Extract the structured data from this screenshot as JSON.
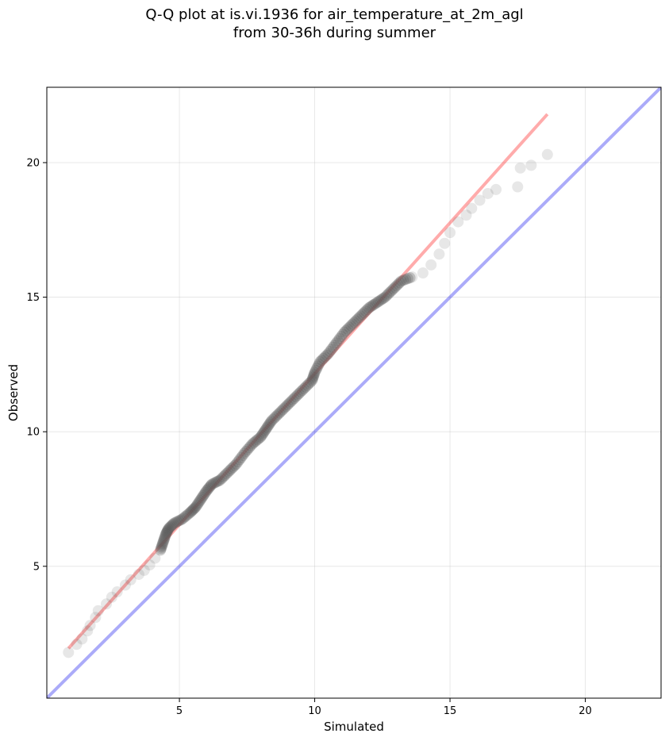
{
  "chart_data": {
    "type": "scatter",
    "title": "Q-Q plot at is.vi.1936 for air_temperature_at_2m_agl",
    "subtitle": "from 30-36h during summer",
    "xlabel": "Simulated",
    "ylabel": "Observed",
    "xlim": [
      0.1,
      22.8
    ],
    "ylim": [
      0.1,
      22.8
    ],
    "xticks": [
      5,
      10,
      15,
      20
    ],
    "yticks": [
      5,
      10,
      15,
      20
    ],
    "grid": true,
    "reference_line": {
      "color": "#0000ee",
      "alpha": 0.33,
      "points": [
        [
          0.1,
          0.1
        ],
        [
          22.8,
          22.8
        ]
      ]
    },
    "fit_line": {
      "color": "#ff0000",
      "alpha": 0.33,
      "points": [
        [
          0.9,
          1.95
        ],
        [
          18.6,
          21.8
        ]
      ]
    },
    "marker_color": "#555555",
    "points": [
      [
        0.9,
        1.8
      ],
      [
        1.2,
        2.1
      ],
      [
        1.4,
        2.3
      ],
      [
        1.6,
        2.6
      ],
      [
        1.7,
        2.8
      ],
      [
        1.9,
        3.1
      ],
      [
        2.0,
        3.35
      ],
      [
        2.3,
        3.6
      ],
      [
        2.5,
        3.85
      ],
      [
        2.7,
        4.05
      ],
      [
        3.0,
        4.3
      ],
      [
        3.2,
        4.5
      ],
      [
        3.5,
        4.7
      ],
      [
        3.7,
        4.85
      ],
      [
        3.9,
        5.05
      ],
      [
        4.1,
        5.3
      ],
      [
        4.3,
        5.6
      ],
      [
        4.4,
        5.9
      ],
      [
        4.5,
        6.2
      ],
      [
        4.6,
        6.4
      ],
      [
        4.8,
        6.6
      ],
      [
        5.1,
        6.75
      ],
      [
        5.4,
        7.0
      ],
      [
        5.6,
        7.2
      ],
      [
        5.8,
        7.5
      ],
      [
        6.0,
        7.8
      ],
      [
        6.2,
        8.05
      ],
      [
        6.5,
        8.2
      ],
      [
        6.8,
        8.5
      ],
      [
        7.1,
        8.8
      ],
      [
        7.4,
        9.2
      ],
      [
        7.7,
        9.55
      ],
      [
        8.0,
        9.8
      ],
      [
        8.2,
        10.1
      ],
      [
        8.4,
        10.4
      ],
      [
        8.7,
        10.7
      ],
      [
        9.0,
        11.0
      ],
      [
        9.3,
        11.3
      ],
      [
        9.6,
        11.6
      ],
      [
        9.9,
        11.9
      ],
      [
        10.0,
        12.2
      ],
      [
        10.2,
        12.6
      ],
      [
        10.5,
        12.9
      ],
      [
        10.8,
        13.3
      ],
      [
        11.1,
        13.7
      ],
      [
        11.4,
        14.0
      ],
      [
        11.7,
        14.3
      ],
      [
        12.0,
        14.6
      ],
      [
        12.3,
        14.8
      ],
      [
        12.6,
        15.0
      ],
      [
        12.9,
        15.3
      ],
      [
        13.2,
        15.6
      ],
      [
        13.6,
        15.75
      ],
      [
        14.0,
        15.9
      ],
      [
        14.3,
        16.2
      ],
      [
        14.6,
        16.6
      ],
      [
        14.8,
        17.0
      ],
      [
        15.0,
        17.4
      ],
      [
        15.3,
        17.8
      ],
      [
        15.6,
        18.05
      ],
      [
        15.8,
        18.3
      ],
      [
        16.1,
        18.6
      ],
      [
        16.4,
        18.85
      ],
      [
        16.7,
        19.0
      ],
      [
        17.5,
        19.1
      ],
      [
        17.6,
        19.8
      ],
      [
        18.0,
        19.9
      ],
      [
        18.6,
        20.3
      ]
    ]
  }
}
